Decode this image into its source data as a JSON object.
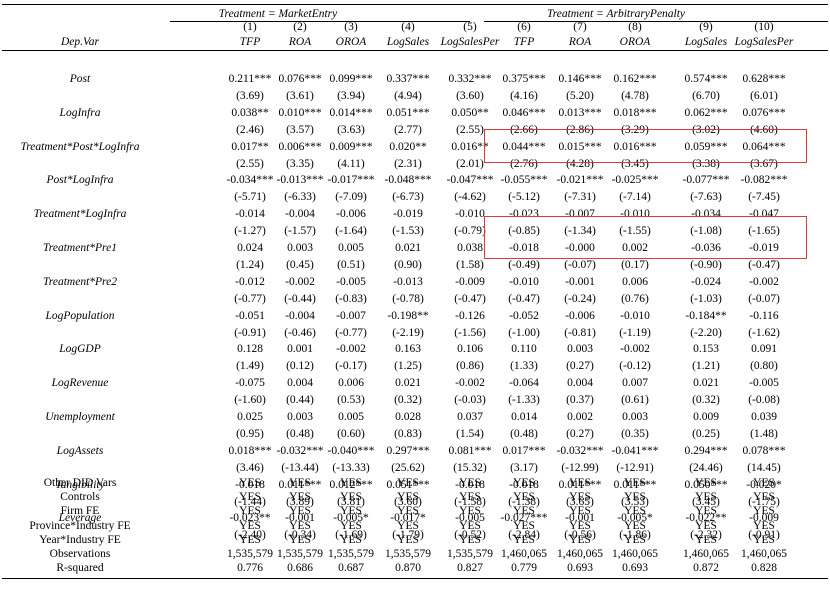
{
  "groups": [
    {
      "title": "Treatment = MarketEntry"
    },
    {
      "title": "Treatment = ArbitraryPenalty"
    }
  ],
  "col_numbers": [
    "(1)",
    "(2)",
    "(3)",
    "(4)",
    "(5)",
    "(6)",
    "(7)",
    "(8)",
    "(9)",
    "(10)"
  ],
  "header": {
    "depvar_label": "Dep.Var",
    "columns": [
      "TFP",
      "ROA",
      "OROA",
      "LogSales",
      "LogSalesPer",
      "TFP",
      "ROA",
      "OROA",
      "LogSales",
      "LogSalesPer"
    ]
  },
  "rows": [
    {
      "label": "Post",
      "coef": [
        "0.211***",
        "0.076***",
        "0.099***",
        "0.337***",
        "0.332***",
        "0.375***",
        "0.146***",
        "0.162***",
        "0.574***",
        "0.628***"
      ],
      "t": [
        "(3.69)",
        "(3.61)",
        "(3.94)",
        "(4.94)",
        "(3.60)",
        "(4.16)",
        "(5.20)",
        "(4.78)",
        "(6.70)",
        "(6.01)"
      ]
    },
    {
      "label": "LogInfra",
      "coef": [
        "0.038**",
        "0.010***",
        "0.014***",
        "0.051***",
        "0.050**",
        "0.046***",
        "0.013***",
        "0.018***",
        "0.062***",
        "0.076***"
      ],
      "t": [
        "(2.46)",
        "(3.57)",
        "(3.63)",
        "(2.77)",
        "(2.55)",
        "(2.66)",
        "(2.86)",
        "(3.29)",
        "(3.02)",
        "(4.60)"
      ]
    },
    {
      "label": "Treatment*Post*LogInfra",
      "coef": [
        "0.017**",
        "0.006***",
        "0.009***",
        "0.020**",
        "0.016**",
        "0.044***",
        "0.015***",
        "0.016***",
        "0.059***",
        "0.064***"
      ],
      "t": [
        "(2.55)",
        "(3.35)",
        "(4.11)",
        "(2.31)",
        "(2.01)",
        "(2.76)",
        "(4.28)",
        "(3.45)",
        "(3.38)",
        "(3.67)"
      ]
    },
    {
      "label": "Post*LogInfra",
      "coef": [
        "-0.034***",
        "-0.013***",
        "-0.017***",
        "-0.048***",
        "-0.047***",
        "-0.055***",
        "-0.021***",
        "-0.025***",
        "-0.077***",
        "-0.082***"
      ],
      "t": [
        "(-5.71)",
        "(-6.33)",
        "(-7.09)",
        "(-6.73)",
        "(-4.62)",
        "(-5.12)",
        "(-7.31)",
        "(-7.14)",
        "(-7.63)",
        "(-7.45)"
      ]
    },
    {
      "label": "Treatment*LogInfra",
      "coef": [
        "-0.014",
        "-0.004",
        "-0.006",
        "-0.019",
        "-0.010",
        "-0.023",
        "-0.007",
        "-0.010",
        "-0.034",
        "-0.047"
      ],
      "t": [
        "(-1.27)",
        "(-1.57)",
        "(-1.64)",
        "(-1.53)",
        "(-0.79)",
        "(-0.85)",
        "(-1.34)",
        "(-1.55)",
        "(-1.08)",
        "(-1.65)"
      ]
    },
    {
      "label": "Treatment*Pre1",
      "coef": [
        "0.024",
        "0.003",
        "0.005",
        "0.021",
        "0.038",
        "-0.018",
        "-0.000",
        "0.002",
        "-0.036",
        "-0.019"
      ],
      "t": [
        "(1.24)",
        "(0.45)",
        "(0.51)",
        "(0.90)",
        "(1.58)",
        "(-0.49)",
        "(-0.07)",
        "(0.17)",
        "(-0.90)",
        "(-0.47)"
      ]
    },
    {
      "label": "Treatment*Pre2",
      "coef": [
        "-0.012",
        "-0.002",
        "-0.005",
        "-0.013",
        "-0.009",
        "-0.010",
        "-0.001",
        "0.006",
        "-0.024",
        "-0.002"
      ],
      "t": [
        "(-0.77)",
        "(-0.44)",
        "(-0.83)",
        "(-0.78)",
        "(-0.47)",
        "(-0.47)",
        "(-0.24)",
        "(0.76)",
        "(-1.03)",
        "(-0.07)"
      ]
    },
    {
      "label": "LogPopulation",
      "coef": [
        "-0.051",
        "-0.004",
        "-0.007",
        "-0.198**",
        "-0.126",
        "-0.052",
        "-0.006",
        "-0.010",
        "-0.184**",
        "-0.116"
      ],
      "t": [
        "(-0.91)",
        "(-0.46)",
        "(-0.77)",
        "(-2.19)",
        "(-1.56)",
        "(-1.00)",
        "(-0.81)",
        "(-1.19)",
        "(-2.20)",
        "(-1.62)"
      ]
    },
    {
      "label": "LogGDP",
      "coef": [
        "0.128",
        "0.001",
        "-0.002",
        "0.163",
        "0.106",
        "0.110",
        "0.003",
        "-0.002",
        "0.153",
        "0.091"
      ],
      "t": [
        "(1.49)",
        "(0.12)",
        "(-0.17)",
        "(1.25)",
        "(0.86)",
        "(1.33)",
        "(0.27)",
        "(-0.12)",
        "(1.21)",
        "(0.80)"
      ]
    },
    {
      "label": "LogRevenue",
      "coef": [
        "-0.075",
        "0.004",
        "0.006",
        "0.021",
        "-0.002",
        "-0.064",
        "0.004",
        "0.007",
        "0.021",
        "-0.005"
      ],
      "t": [
        "(-1.60)",
        "(0.44)",
        "(0.53)",
        "(0.32)",
        "(-0.03)",
        "(-1.33)",
        "(0.37)",
        "(0.61)",
        "(0.32)",
        "(-0.08)"
      ]
    },
    {
      "label": "Unemployment",
      "coef": [
        "0.025",
        "0.003",
        "0.005",
        "0.028",
        "0.037",
        "0.014",
        "0.002",
        "0.003",
        "0.009",
        "0.039"
      ],
      "t": [
        "(0.95)",
        "(0.48)",
        "(0.60)",
        "(0.83)",
        "(1.54)",
        "(0.48)",
        "(0.27)",
        "(0.35)",
        "(0.25)",
        "(1.48)"
      ]
    },
    {
      "label": "LogAssets",
      "coef": [
        "0.018***",
        "-0.032***",
        "-0.040***",
        "0.297***",
        "0.081***",
        "0.017***",
        "-0.032***",
        "-0.041***",
        "0.294***",
        "0.078***"
      ],
      "t": [
        "(3.46)",
        "(-13.44)",
        "(-13.33)",
        "(25.62)",
        "(15.32)",
        "(3.17)",
        "(-12.99)",
        "(-12.91)",
        "(24.46)",
        "(14.45)"
      ]
    },
    {
      "label": "Tangibility",
      "coef": [
        "-0.018",
        "0.011***",
        "0.012***",
        "0.051***",
        "-0.018",
        "-0.018",
        "0.011***",
        "0.011***",
        "0.050***",
        "-0.020*"
      ],
      "t": [
        "(-1.44)",
        "(3.89)",
        "(3.81)",
        "(3.60)",
        "(-1.58)",
        "(-1.38)",
        "(3.65)",
        "(3.53)",
        "(3.45)",
        "(-1.75)"
      ]
    },
    {
      "label": "Leverage",
      "coef": [
        "-0.023**",
        "-0.001",
        "-0.005*",
        "-0.017*",
        "-0.005",
        "-0.027***",
        "-0.001",
        "-0.005*",
        "-0.022**",
        "-0.009"
      ],
      "t": [
        "(-2.40)",
        "(-0.34)",
        "(-1.69)",
        "(-1.79)",
        "(-0.52)",
        "(-2.84)",
        "(-0.56)",
        "(-1.86)",
        "(-2.32)",
        "(-0.91)"
      ]
    }
  ],
  "footer_rows": [
    {
      "label": "Other DID Vars",
      "values": [
        "YES",
        "YES",
        "YES",
        "YES",
        "YES",
        "YES",
        "YES",
        "YES",
        "YES",
        "YES"
      ]
    },
    {
      "label": "Controls",
      "values": [
        "YES",
        "YES",
        "YES",
        "YES",
        "YES",
        "YES",
        "YES",
        "YES",
        "YES",
        "YES"
      ]
    },
    {
      "label": "Firm FE",
      "values": [
        "YES",
        "YES",
        "YES",
        "YES",
        "YES",
        "YES",
        "YES",
        "YES",
        "YES",
        "YES"
      ]
    },
    {
      "label": "Province*Industry FE",
      "values": [
        "YES",
        "YES",
        "YES",
        "YES",
        "YES",
        "YES",
        "YES",
        "YES",
        "YES",
        "YES"
      ]
    },
    {
      "label": "Year*Industry FE",
      "values": [
        "YES",
        "YES",
        "YES",
        "YES",
        "YES",
        "YES",
        "YES",
        "YES",
        "YES",
        "YES"
      ]
    },
    {
      "label": "Observations",
      "values": [
        "1,535,579",
        "1,535,579",
        "1,535,579",
        "1,535,579",
        "1,535,579",
        "1,460,065",
        "1,460,065",
        "1,460,065",
        "1,460,065",
        "1,460,065"
      ]
    },
    {
      "label": "R-squared",
      "values": [
        "0.776",
        "0.686",
        "0.687",
        "0.870",
        "0.827",
        "0.779",
        "0.693",
        "0.693",
        "0.872",
        "0.828"
      ]
    }
  ],
  "highlight_color": "#d93a3a"
}
